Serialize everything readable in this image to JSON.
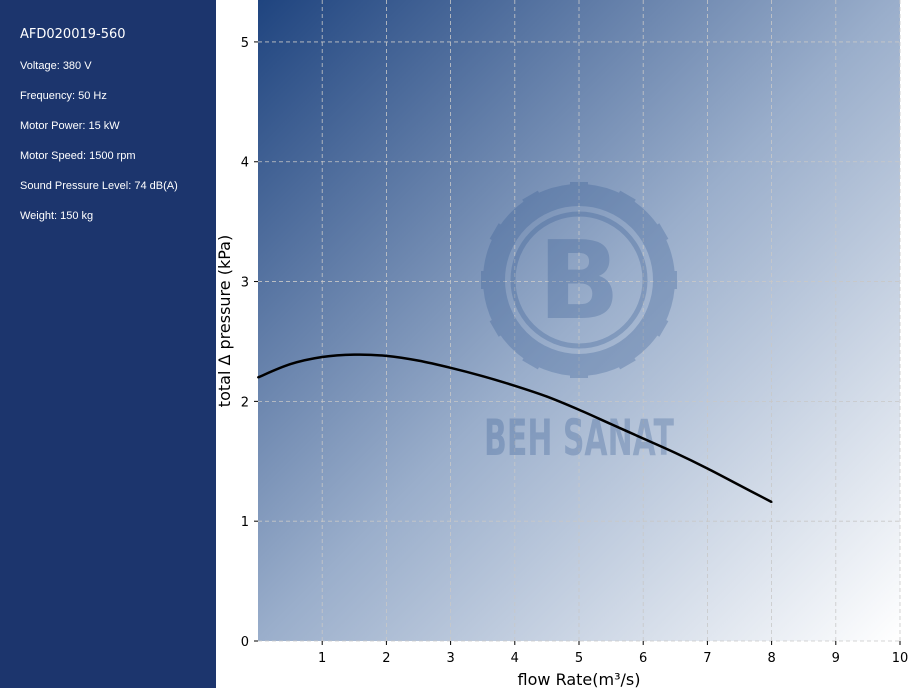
{
  "sidebar": {
    "model": "AFD020019-560",
    "specs": [
      "Voltage: 380 V",
      "Frequency: 50 Hz",
      "Motor Power: 15 kW",
      "Motor Speed: 1500 rpm",
      "Sound Pressure Level: 74 dB(A)",
      "Weight: 150 kg"
    ]
  },
  "watermark": {
    "letter": "B",
    "text": "BEH SANAT"
  },
  "colors": {
    "sidebar_bg": "#1c356d",
    "gradient_start": "#1f447f",
    "gradient_end": "#ffffff",
    "curve": "#000000"
  },
  "chart_data": {
    "type": "line",
    "xlabel": "flow Rate(m³/s)",
    "ylabel": "total Δ pressure (kPa)",
    "xlim": [
      0,
      10
    ],
    "ylim": [
      0,
      5.35
    ],
    "xticks": [
      1,
      2,
      3,
      4,
      5,
      6,
      7,
      8,
      9,
      10
    ],
    "yticks": [
      0,
      1,
      2,
      3,
      4,
      5
    ],
    "grid": true,
    "series": [
      {
        "x": [
          0,
          0.5,
          1,
          1.5,
          2,
          2.5,
          3,
          3.5,
          4,
          4.5,
          5,
          5.5,
          6,
          6.5,
          7,
          7.5,
          8
        ],
        "y": [
          2.2,
          2.31,
          2.37,
          2.39,
          2.38,
          2.34,
          2.28,
          2.21,
          2.13,
          2.04,
          1.93,
          1.81,
          1.69,
          1.57,
          1.44,
          1.3,
          1.16
        ]
      }
    ]
  }
}
